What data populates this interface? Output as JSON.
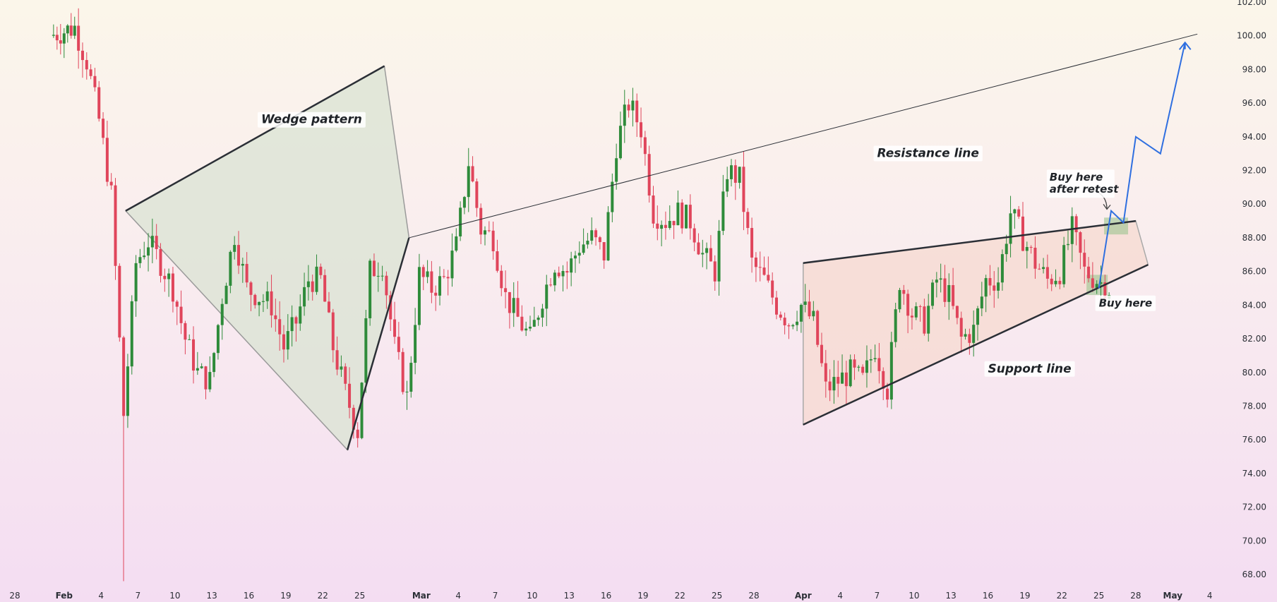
{
  "chart_data": {
    "type": "candlestick",
    "title": "",
    "xlabel": "",
    "ylabel": "",
    "ylim": [
      67.5,
      102.2
    ],
    "y_ticks": [
      "102.00",
      "100.00",
      "98.00",
      "96.00",
      "94.00",
      "92.00",
      "90.00",
      "88.00",
      "86.00",
      "84.00",
      "82.00",
      "80.00",
      "78.00",
      "76.00",
      "74.00",
      "72.00",
      "70.00",
      "68.00"
    ],
    "x_ticks": [
      "28",
      "Feb",
      "4",
      "7",
      "10",
      "13",
      "16",
      "19",
      "22",
      "25",
      "Mar",
      "4",
      "7",
      "10",
      "13",
      "16",
      "19",
      "22",
      "25",
      "28",
      "Apr",
      "4",
      "7",
      "10",
      "13",
      "16",
      "19",
      "22",
      "25",
      "28",
      "May",
      "4"
    ],
    "grid": false,
    "up_color": "#2e8b3a",
    "down_color": "#e0455b",
    "shape_colors": {
      "wedge_fill": "#d9e3d3",
      "channel_fill": "#f6d9cf",
      "buy_zone_fill": "#9bc48f",
      "projection_line": "#2f6fe0",
      "trend_line": "#2b2f36"
    },
    "key_points": [
      {
        "label": "wedge-upper-start",
        "date": "Feb 6",
        "value": 89.6
      },
      {
        "label": "wedge-upper-end",
        "date": "Feb 27",
        "value": 98.2
      },
      {
        "label": "wedge-lower-start",
        "date": "Feb 24",
        "value": 75.4
      },
      {
        "label": "wedge-lower-end",
        "date": "Feb 29",
        "value": 88.0
      },
      {
        "label": "resistance-line-end",
        "date": "May 3",
        "value": 100.1
      },
      {
        "label": "channel-support-start",
        "date": "Apr 1",
        "value": 76.9
      },
      {
        "label": "channel-support-end",
        "date": "Apr 29",
        "value": 86.4
      },
      {
        "label": "channel-top-start",
        "date": "Apr 1",
        "value": 86.5
      },
      {
        "label": "channel-top-end",
        "date": "Apr 28",
        "value": 89.0
      },
      {
        "label": "projection-high",
        "date": "May 2",
        "value": 99.6
      }
    ],
    "projection": [
      {
        "date": "Apr 25",
        "value": 85.0
      },
      {
        "date": "Apr 26",
        "value": 89.6
      },
      {
        "date": "Apr 27",
        "value": 88.9
      },
      {
        "date": "Apr 28",
        "value": 94.0
      },
      {
        "date": "Apr 30",
        "value": 93.0
      },
      {
        "date": "May 2",
        "value": 99.6
      },
      {
        "date": "May 2",
        "value": 99.2
      }
    ],
    "annotations": [
      {
        "text": "Wedge pattern",
        "date": "Feb 17",
        "value": 94.8
      },
      {
        "text": "Resistance line",
        "date": "Apr 7",
        "value": 92.8
      },
      {
        "text": "Support line",
        "date": "Apr 16",
        "value": 80.0
      },
      {
        "text": "Buy here",
        "date": "Apr 25",
        "value": 83.9
      },
      {
        "text": "Buy here after retest",
        "date": "Apr 21",
        "value": 91.3
      }
    ]
  }
}
